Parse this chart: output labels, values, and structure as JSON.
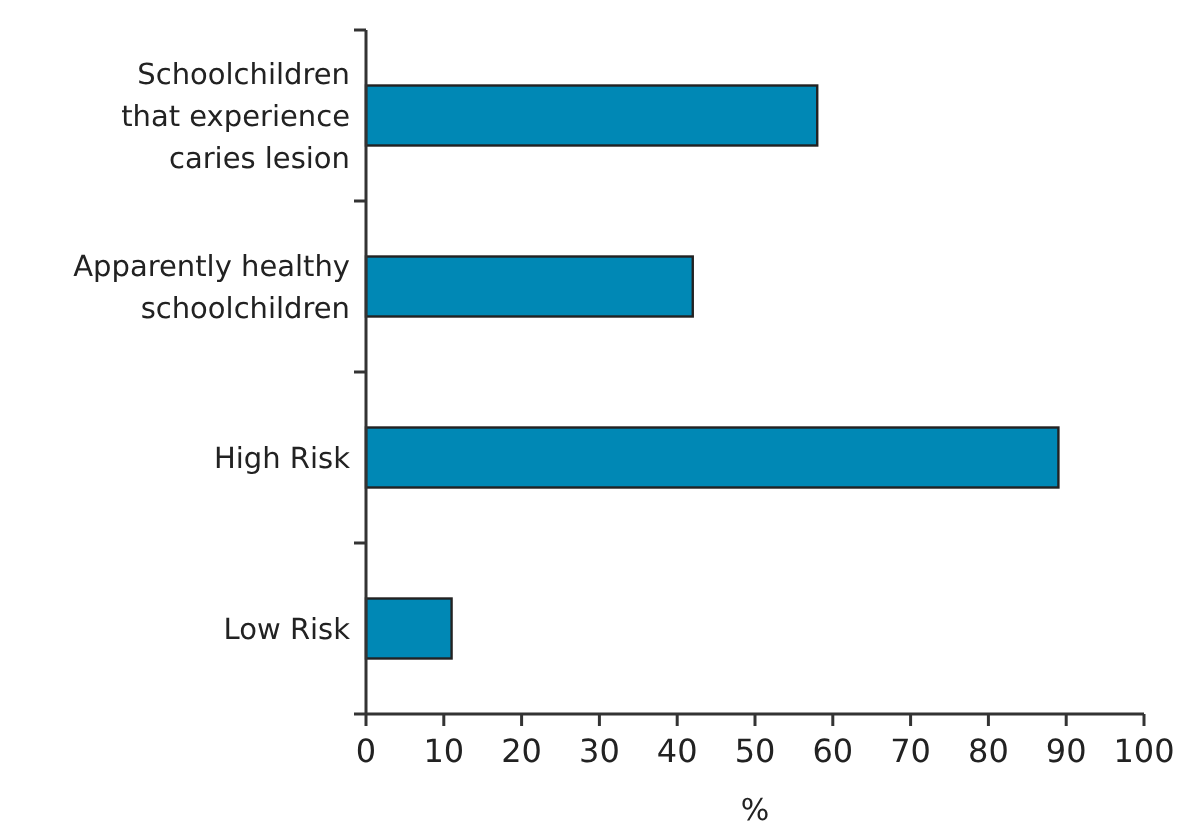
{
  "chart_data": {
    "type": "bar",
    "orientation": "horizontal",
    "xlabel": "%",
    "categories": [
      "Schoolchildren that experience caries lesion",
      "Apparently healthy schoolchildren",
      "High Risk",
      "Low Risk"
    ],
    "values": [
      58,
      42,
      89,
      11
    ],
    "color": "#0088b5",
    "xlim": [
      0,
      100
    ],
    "xticks": [
      0,
      10,
      20,
      30,
      40,
      50,
      60,
      70,
      80,
      90,
      100
    ],
    "grid": false
  }
}
